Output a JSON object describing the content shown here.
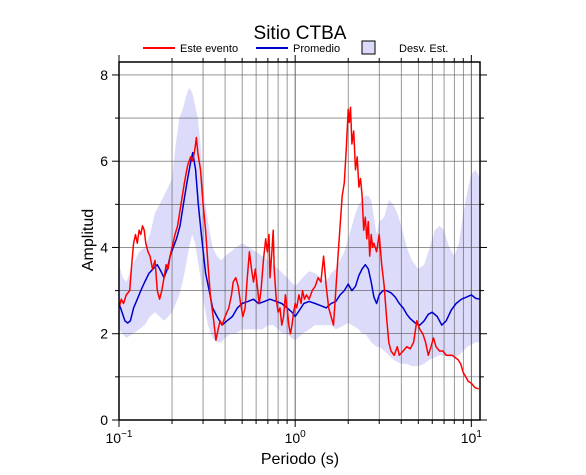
{
  "chart_data": {
    "type": "line",
    "title": "Sitio CTBA",
    "xlabel": "Periodo (s)",
    "ylabel": "Amplitud",
    "xscale": "log",
    "xlim": [
      0.1,
      11.2
    ],
    "ylim": [
      0,
      8.3
    ],
    "x_ticks": [
      {
        "value": 0.1,
        "base": "10",
        "exp": "−1"
      },
      {
        "value": 1,
        "base": "10",
        "exp": "0"
      },
      {
        "value": 10,
        "base": "10",
        "exp": "1"
      }
    ],
    "y_ticks": [
      {
        "value": 0,
        "label": "0"
      },
      {
        "value": 2,
        "label": "2"
      },
      {
        "value": 4,
        "label": "4"
      },
      {
        "value": 6,
        "label": "6"
      },
      {
        "value": 8,
        "label": "8"
      }
    ],
    "grid": true,
    "legend_position": "top",
    "legend": [
      {
        "label": "Este evento",
        "kind": "line",
        "color": "#ff0000"
      },
      {
        "label": "Promedio",
        "kind": "line",
        "color": "#0000cc"
      },
      {
        "label": "Desv. Est.",
        "kind": "box",
        "color": "#dcdcfa"
      }
    ],
    "series": [
      {
        "key": "este_evento",
        "color": "#ff0000",
        "points": [
          [
            0.1,
            2.6
          ],
          [
            0.103,
            2.8
          ],
          [
            0.106,
            2.7
          ],
          [
            0.11,
            2.9
          ],
          [
            0.115,
            3.0
          ],
          [
            0.118,
            3.6
          ],
          [
            0.121,
            4.1
          ],
          [
            0.124,
            4.3
          ],
          [
            0.127,
            4.1
          ],
          [
            0.13,
            4.4
          ],
          [
            0.133,
            4.3
          ],
          [
            0.136,
            4.5
          ],
          [
            0.139,
            4.4
          ],
          [
            0.142,
            4.1
          ],
          [
            0.146,
            3.9
          ],
          [
            0.15,
            3.8
          ],
          [
            0.155,
            3.5
          ],
          [
            0.16,
            3.7
          ],
          [
            0.165,
            3.0
          ],
          [
            0.17,
            2.8
          ],
          [
            0.175,
            3.0
          ],
          [
            0.18,
            3.3
          ],
          [
            0.185,
            3.6
          ],
          [
            0.19,
            3.5
          ],
          [
            0.195,
            3.8
          ],
          [
            0.2,
            4.0
          ],
          [
            0.208,
            4.3
          ],
          [
            0.215,
            4.5
          ],
          [
            0.225,
            5.0
          ],
          [
            0.235,
            5.5
          ],
          [
            0.245,
            5.9
          ],
          [
            0.255,
            6.1
          ],
          [
            0.262,
            6.0
          ],
          [
            0.27,
            6.3
          ],
          [
            0.275,
            6.55
          ],
          [
            0.28,
            6.2
          ],
          [
            0.29,
            5.8
          ],
          [
            0.3,
            5.0
          ],
          [
            0.31,
            4.4
          ],
          [
            0.32,
            3.6
          ],
          [
            0.33,
            2.9
          ],
          [
            0.345,
            2.3
          ],
          [
            0.355,
            1.85
          ],
          [
            0.365,
            2.1
          ],
          [
            0.375,
            2.3
          ],
          [
            0.385,
            2.2
          ],
          [
            0.4,
            2.4
          ],
          [
            0.42,
            2.6
          ],
          [
            0.435,
            2.9
          ],
          [
            0.445,
            3.2
          ],
          [
            0.46,
            3.3
          ],
          [
            0.475,
            3.1
          ],
          [
            0.49,
            2.7
          ],
          [
            0.505,
            2.4
          ],
          [
            0.52,
            2.6
          ],
          [
            0.535,
            3.3
          ],
          [
            0.55,
            3.9
          ],
          [
            0.565,
            3.5
          ],
          [
            0.58,
            3.2
          ],
          [
            0.595,
            3.5
          ],
          [
            0.61,
            3.1
          ],
          [
            0.625,
            2.7
          ],
          [
            0.64,
            3.0
          ],
          [
            0.66,
            3.7
          ],
          [
            0.68,
            4.2
          ],
          [
            0.695,
            3.9
          ],
          [
            0.71,
            4.3
          ],
          [
            0.72,
            3.3
          ],
          [
            0.735,
            3.8
          ],
          [
            0.75,
            4.4
          ],
          [
            0.76,
            3.5
          ],
          [
            0.78,
            2.8
          ],
          [
            0.8,
            2.5
          ],
          [
            0.82,
            2.6
          ],
          [
            0.84,
            2.2
          ],
          [
            0.86,
            2.4
          ],
          [
            0.88,
            2.9
          ],
          [
            0.9,
            2.6
          ],
          [
            0.92,
            2.2
          ],
          [
            0.94,
            2.0
          ],
          [
            0.96,
            2.2
          ],
          [
            0.98,
            2.5
          ],
          [
            1.0,
            2.7
          ],
          [
            1.02,
            2.6
          ],
          [
            1.05,
            2.9
          ],
          [
            1.08,
            2.7
          ],
          [
            1.1,
            3.0
          ],
          [
            1.13,
            2.8
          ],
          [
            1.16,
            2.9
          ],
          [
            1.2,
            2.8
          ],
          [
            1.25,
            3.0
          ],
          [
            1.3,
            3.1
          ],
          [
            1.35,
            3.3
          ],
          [
            1.4,
            3.2
          ],
          [
            1.45,
            3.8
          ],
          [
            1.5,
            3.1
          ],
          [
            1.55,
            2.6
          ],
          [
            1.6,
            2.4
          ],
          [
            1.65,
            2.2
          ],
          [
            1.7,
            3.0
          ],
          [
            1.75,
            3.8
          ],
          [
            1.8,
            4.5
          ],
          [
            1.85,
            5.2
          ],
          [
            1.9,
            5.5
          ],
          [
            1.95,
            6.3
          ],
          [
            2.0,
            7.2
          ],
          [
            2.03,
            6.9
          ],
          [
            2.06,
            7.25
          ],
          [
            2.1,
            6.4
          ],
          [
            2.15,
            6.7
          ],
          [
            2.2,
            5.8
          ],
          [
            2.25,
            6.1
          ],
          [
            2.3,
            5.4
          ],
          [
            2.35,
            5.6
          ],
          [
            2.4,
            5.2
          ],
          [
            2.45,
            4.4
          ],
          [
            2.5,
            4.7
          ],
          [
            2.55,
            4.2
          ],
          [
            2.6,
            4.6
          ],
          [
            2.65,
            3.8
          ],
          [
            2.7,
            4.3
          ],
          [
            2.75,
            4.0
          ],
          [
            2.8,
            4.1
          ],
          [
            2.9,
            3.9
          ],
          [
            3.0,
            4.3
          ],
          [
            3.1,
            3.6
          ],
          [
            3.2,
            3.1
          ],
          [
            3.3,
            2.4
          ],
          [
            3.4,
            1.8
          ],
          [
            3.5,
            1.6
          ],
          [
            3.65,
            1.5
          ],
          [
            3.8,
            1.7
          ],
          [
            3.9,
            1.5
          ],
          [
            4.1,
            1.6
          ],
          [
            4.3,
            1.7
          ],
          [
            4.5,
            1.65
          ],
          [
            4.7,
            1.8
          ],
          [
            4.9,
            2.3
          ],
          [
            5.1,
            2.1
          ],
          [
            5.3,
            2.0
          ],
          [
            5.5,
            1.8
          ],
          [
            5.7,
            1.5
          ],
          [
            5.9,
            1.7
          ],
          [
            6.1,
            1.9
          ],
          [
            6.3,
            1.7
          ],
          [
            6.6,
            1.6
          ],
          [
            6.9,
            1.6
          ],
          [
            7.2,
            1.5
          ],
          [
            7.5,
            1.5
          ],
          [
            7.8,
            1.5
          ],
          [
            8.1,
            1.45
          ],
          [
            8.4,
            1.4
          ],
          [
            8.7,
            1.3
          ],
          [
            9.0,
            1.1
          ],
          [
            9.3,
            1.0
          ],
          [
            9.6,
            0.9
          ],
          [
            10.0,
            0.85
          ],
          [
            10.5,
            0.75
          ],
          [
            11.0,
            0.72
          ]
        ]
      },
      {
        "key": "promedio",
        "color": "#0000cc",
        "points": [
          [
            0.1,
            2.7
          ],
          [
            0.104,
            2.5
          ],
          [
            0.108,
            2.3
          ],
          [
            0.112,
            2.25
          ],
          [
            0.116,
            2.3
          ],
          [
            0.121,
            2.6
          ],
          [
            0.127,
            2.8
          ],
          [
            0.133,
            3.0
          ],
          [
            0.14,
            3.2
          ],
          [
            0.148,
            3.4
          ],
          [
            0.156,
            3.5
          ],
          [
            0.165,
            3.6
          ],
          [
            0.173,
            3.45
          ],
          [
            0.18,
            3.3
          ],
          [
            0.188,
            3.5
          ],
          [
            0.195,
            3.8
          ],
          [
            0.203,
            4.0
          ],
          [
            0.212,
            4.2
          ],
          [
            0.222,
            4.5
          ],
          [
            0.232,
            5.0
          ],
          [
            0.243,
            5.5
          ],
          [
            0.253,
            5.9
          ],
          [
            0.262,
            6.2
          ],
          [
            0.272,
            5.8
          ],
          [
            0.282,
            5.0
          ],
          [
            0.295,
            4.2
          ],
          [
            0.31,
            3.4
          ],
          [
            0.325,
            3.0
          ],
          [
            0.34,
            2.6
          ],
          [
            0.36,
            2.4
          ],
          [
            0.385,
            2.2
          ],
          [
            0.41,
            2.3
          ],
          [
            0.44,
            2.4
          ],
          [
            0.47,
            2.6
          ],
          [
            0.5,
            2.7
          ],
          [
            0.54,
            2.75
          ],
          [
            0.58,
            2.8
          ],
          [
            0.62,
            2.7
          ],
          [
            0.67,
            2.75
          ],
          [
            0.72,
            2.8
          ],
          [
            0.78,
            2.75
          ],
          [
            0.84,
            2.7
          ],
          [
            0.9,
            2.6
          ],
          [
            0.96,
            2.5
          ],
          [
            1.0,
            2.4
          ],
          [
            1.06,
            2.55
          ],
          [
            1.12,
            2.7
          ],
          [
            1.2,
            2.75
          ],
          [
            1.3,
            2.7
          ],
          [
            1.4,
            2.65
          ],
          [
            1.5,
            2.6
          ],
          [
            1.6,
            2.7
          ],
          [
            1.7,
            2.75
          ],
          [
            1.8,
            2.9
          ],
          [
            1.9,
            3.0
          ],
          [
            2.0,
            3.15
          ],
          [
            2.1,
            3.0
          ],
          [
            2.2,
            3.1
          ],
          [
            2.3,
            3.35
          ],
          [
            2.4,
            3.5
          ],
          [
            2.5,
            3.6
          ],
          [
            2.6,
            3.5
          ],
          [
            2.7,
            3.2
          ],
          [
            2.8,
            2.85
          ],
          [
            2.9,
            2.7
          ],
          [
            3.0,
            2.9
          ],
          [
            3.15,
            3.0
          ],
          [
            3.3,
            3.0
          ],
          [
            3.5,
            2.95
          ],
          [
            3.7,
            2.85
          ],
          [
            3.9,
            2.7
          ],
          [
            4.1,
            2.6
          ],
          [
            4.3,
            2.45
          ],
          [
            4.5,
            2.35
          ],
          [
            4.8,
            2.25
          ],
          [
            5.1,
            2.2
          ],
          [
            5.4,
            2.3
          ],
          [
            5.7,
            2.45
          ],
          [
            6.0,
            2.5
          ],
          [
            6.4,
            2.4
          ],
          [
            6.8,
            2.2
          ],
          [
            7.2,
            2.3
          ],
          [
            7.7,
            2.55
          ],
          [
            8.2,
            2.7
          ],
          [
            8.8,
            2.8
          ],
          [
            9.4,
            2.85
          ],
          [
            10.0,
            2.9
          ],
          [
            10.6,
            2.82
          ],
          [
            11.2,
            2.8
          ]
        ]
      }
    ],
    "band": {
      "color": "#dcdcfa",
      "x": [
        0.1,
        0.105,
        0.11,
        0.12,
        0.13,
        0.14,
        0.15,
        0.16,
        0.17,
        0.18,
        0.19,
        0.2,
        0.21,
        0.22,
        0.23,
        0.24,
        0.25,
        0.26,
        0.27,
        0.28,
        0.29,
        0.3,
        0.32,
        0.34,
        0.36,
        0.38,
        0.4,
        0.43,
        0.46,
        0.5,
        0.55,
        0.6,
        0.65,
        0.7,
        0.75,
        0.8,
        0.85,
        0.9,
        0.95,
        1.0,
        1.1,
        1.2,
        1.3,
        1.4,
        1.5,
        1.6,
        1.7,
        1.8,
        1.9,
        2.0,
        2.1,
        2.2,
        2.3,
        2.4,
        2.5,
        2.6,
        2.7,
        2.8,
        2.9,
        3.0,
        3.2,
        3.4,
        3.6,
        3.8,
        4.0,
        4.3,
        4.6,
        5.0,
        5.4,
        5.8,
        6.2,
        6.6,
        7.0,
        7.5,
        8.0,
        8.5,
        9.0,
        9.5,
        10.0,
        10.6,
        11.2
      ],
      "upper": [
        3.6,
        3.3,
        3.2,
        3.6,
        3.9,
        4.0,
        4.3,
        4.8,
        5.0,
        5.2,
        5.4,
        5.6,
        6.4,
        7.0,
        7.2,
        7.5,
        7.7,
        7.6,
        7.3,
        7.0,
        6.4,
        5.4,
        4.6,
        4.0,
        3.8,
        3.7,
        3.8,
        3.9,
        4.0,
        4.1,
        4.0,
        3.9,
        3.8,
        3.7,
        3.6,
        3.5,
        3.4,
        3.3,
        3.2,
        3.1,
        3.3,
        3.45,
        3.4,
        3.3,
        3.2,
        3.4,
        3.5,
        3.7,
        3.9,
        4.2,
        4.5,
        4.8,
        5.0,
        5.1,
        5.2,
        5.2,
        5.1,
        4.7,
        4.3,
        4.6,
        4.7,
        5.1,
        5.0,
        4.8,
        4.5,
        4.0,
        3.7,
        3.5,
        3.6,
        4.0,
        4.4,
        4.5,
        4.4,
        4.0,
        3.8,
        4.1,
        4.8,
        5.3,
        5.7,
        5.8,
        5.6
      ],
      "lower": [
        2.1,
        2.0,
        1.9,
        2.0,
        2.1,
        2.2,
        2.4,
        2.5,
        2.4,
        2.3,
        2.4,
        2.5,
        2.7,
        2.9,
        3.2,
        3.6,
        4.0,
        4.3,
        4.1,
        3.7,
        3.3,
        2.8,
        2.2,
        1.9,
        1.8,
        1.8,
        1.9,
        2.0,
        2.0,
        2.1,
        2.1,
        2.1,
        2.1,
        2.2,
        2.2,
        2.1,
        2.0,
        2.0,
        1.9,
        1.85,
        2.0,
        2.1,
        2.2,
        2.2,
        2.2,
        2.2,
        2.1,
        2.15,
        2.2,
        2.25,
        2.2,
        2.15,
        2.1,
        2.0,
        2.0,
        1.9,
        1.8,
        1.75,
        1.7,
        1.7,
        1.6,
        1.5,
        1.4,
        1.35,
        1.3,
        1.3,
        1.25,
        1.25,
        1.3,
        1.4,
        1.45,
        1.5,
        1.5,
        1.45,
        1.45,
        1.5,
        1.6,
        1.7,
        1.75,
        1.8,
        1.8
      ]
    }
  }
}
